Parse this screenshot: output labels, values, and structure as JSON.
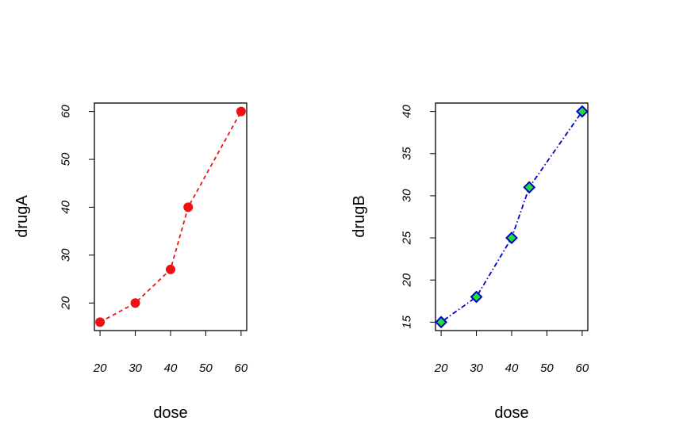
{
  "chart_data": [
    {
      "type": "line",
      "x": [
        20,
        30,
        40,
        45,
        60
      ],
      "series": [
        {
          "values": [
            16,
            20,
            27,
            40,
            60
          ]
        }
      ],
      "xlabel": "dose",
      "ylabel": "drugA",
      "xlim": [
        18.4,
        61.6
      ],
      "ylim": [
        14.24,
        61.76
      ],
      "xticks": [
        20,
        30,
        40,
        50,
        60
      ],
      "yticks": [
        20,
        30,
        40,
        50,
        60
      ],
      "line_color": "#e0191a",
      "marker_fill": "#ee1111",
      "line_style": "dashed",
      "marker": "circle",
      "grid": false
    },
    {
      "type": "line",
      "x": [
        20,
        30,
        40,
        45,
        60
      ],
      "series": [
        {
          "values": [
            15,
            18,
            25,
            31,
            40
          ]
        }
      ],
      "xlabel": "dose",
      "ylabel": "drugB",
      "xlim": [
        18.4,
        61.6
      ],
      "ylim": [
        14.0,
        41.0
      ],
      "xticks": [
        20,
        30,
        40,
        50,
        60
      ],
      "yticks": [
        15,
        20,
        25,
        30,
        35,
        40
      ],
      "line_color": "#0000cc",
      "marker_fill": "#22dd33",
      "marker_stroke": "#0000cc",
      "line_style": "dotdash",
      "marker": "diamond",
      "grid": false
    }
  ]
}
